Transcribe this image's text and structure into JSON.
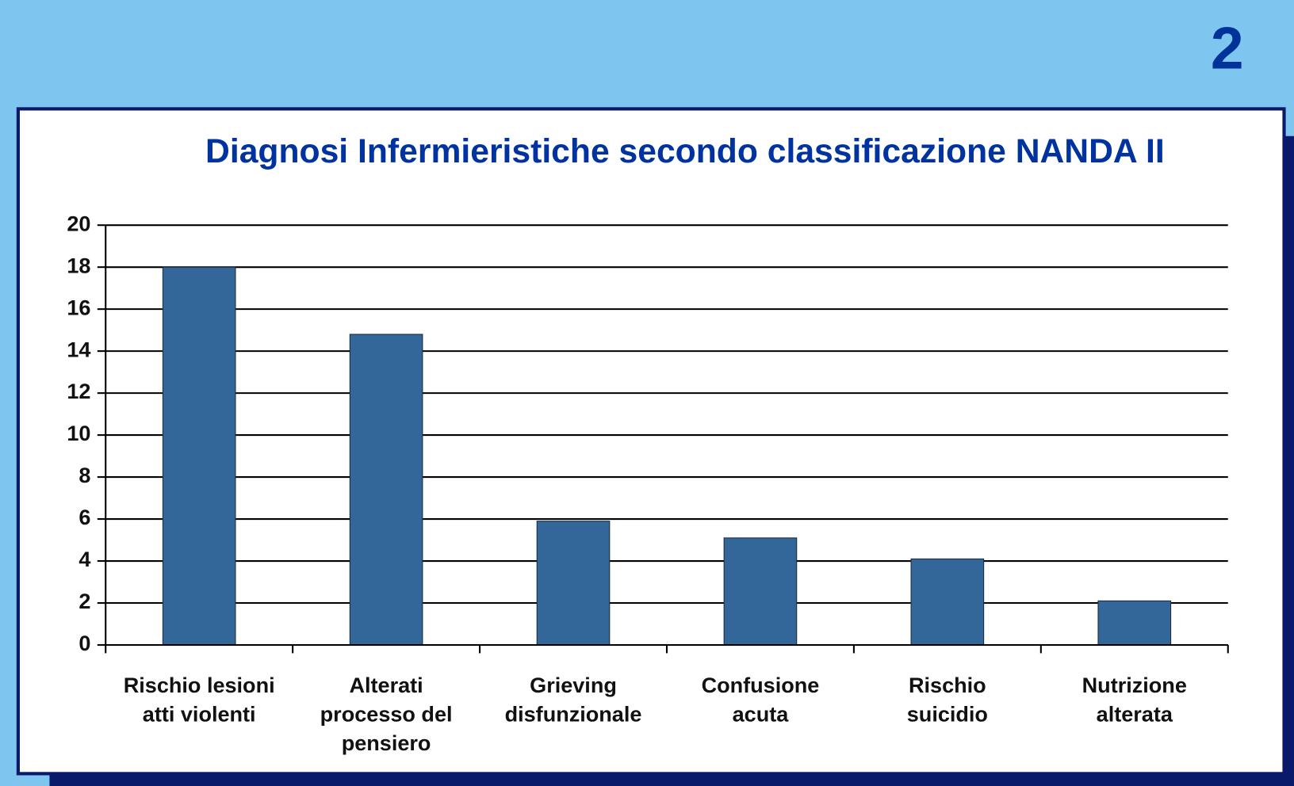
{
  "slide_number": "2",
  "chart_data": {
    "type": "bar",
    "title": "Diagnosi Infermieristiche secondo classificazione NANDA II",
    "categories": [
      "Rischio lesioni\natti violenti",
      "Alterati\nprocesso del\npensiero",
      "Grieving\ndisfunzionale",
      "Confusione\nacuta",
      "Rischio\nsuicidio",
      "Nutrizione\nalterata"
    ],
    "values": [
      18,
      14.8,
      5.9,
      5.1,
      4.1,
      2.1
    ],
    "color": "#336699",
    "ylim": [
      0,
      20
    ],
    "yticks": [
      0,
      2,
      4,
      6,
      8,
      10,
      12,
      14,
      16,
      18,
      20
    ],
    "grid": true
  }
}
